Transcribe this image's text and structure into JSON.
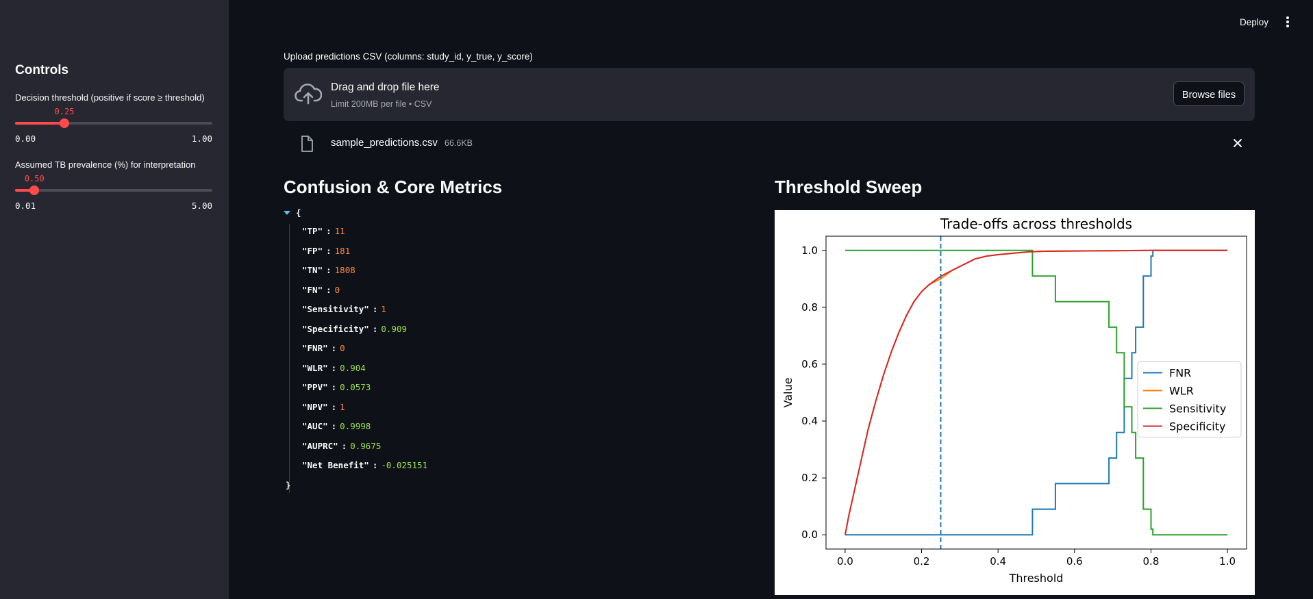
{
  "header": {
    "deploy_label": "Deploy",
    "menu_icon": "vertical-ellipsis-icon"
  },
  "sidebar": {
    "title": "Controls",
    "threshold_slider": {
      "label": "Decision threshold (positive if score ≥ threshold)",
      "value": "0.25",
      "value_num": 0.25,
      "min": "0.00",
      "max": "1.00",
      "min_num": 0.0,
      "max_num": 1.0
    },
    "prevalence_slider": {
      "label": "Assumed TB prevalence (%) for interpretation",
      "value": "0.50",
      "value_num": 0.5,
      "min": "0.01",
      "max": "5.00",
      "min_num": 0.01,
      "max_num": 5.0
    }
  },
  "uploader": {
    "label": "Upload predictions CSV (columns: study_id, y_true, y_score)",
    "drop_text": "Drag and drop file here",
    "limit_text": "Limit 200MB per file • CSV",
    "browse_label": "Browse files",
    "file_name": "sample_predictions.csv",
    "file_size": "66.6KB"
  },
  "metrics": {
    "heading": "Confusion & Core Metrics",
    "open_brace": "{",
    "close_brace": "}",
    "entries": [
      {
        "key": "\"TP\"",
        "value": "11",
        "color": "#ff8c42"
      },
      {
        "key": "\"FP\"",
        "value": "181",
        "color": "#ff8c42"
      },
      {
        "key": "\"TN\"",
        "value": "1808",
        "color": "#ff8c42"
      },
      {
        "key": "\"FN\"",
        "value": "0",
        "color": "#ff8c42"
      },
      {
        "key": "\"Sensitivity\"",
        "value": "1",
        "color": "#ff8c42"
      },
      {
        "key": "\"Specificity\"",
        "value": "0.909",
        "color": "#9ee24f"
      },
      {
        "key": "\"FNR\"",
        "value": "0",
        "color": "#ff8c42"
      },
      {
        "key": "\"WLR\"",
        "value": "0.904",
        "color": "#9ee24f"
      },
      {
        "key": "\"PPV\"",
        "value": "0.0573",
        "color": "#9ee24f"
      },
      {
        "key": "\"NPV\"",
        "value": "1",
        "color": "#ff8c42"
      },
      {
        "key": "\"AUC\"",
        "value": "0.9998",
        "color": "#9ee24f"
      },
      {
        "key": "\"AUPRC\"",
        "value": "0.9675",
        "color": "#9ee24f"
      },
      {
        "key": "\"Net Benefit\"",
        "value": "-0.025151",
        "color": "#9ee24f"
      }
    ]
  },
  "sweep": {
    "heading": "Threshold Sweep"
  },
  "chart_data": {
    "type": "line",
    "title": "Trade-offs across thresholds",
    "xlabel": "Threshold",
    "ylabel": "Value",
    "xlim": [
      -0.05,
      1.05
    ],
    "ylim": [
      -0.05,
      1.05
    ],
    "xticks": [
      "0.0",
      "0.2",
      "0.4",
      "0.6",
      "0.8",
      "1.0"
    ],
    "yticks": [
      "0.0",
      "0.2",
      "0.4",
      "0.6",
      "0.8",
      "1.0"
    ],
    "legend_position": "center-right",
    "vline": {
      "x": 0.25,
      "style": "dashed",
      "color": "#1f77b4"
    },
    "series": [
      {
        "name": "FNR",
        "color": "#1f77b4",
        "x": [
          0.0,
          0.49,
          0.49,
          0.55,
          0.55,
          0.69,
          0.69,
          0.71,
          0.71,
          0.73,
          0.73,
          0.75,
          0.75,
          0.76,
          0.76,
          0.78,
          0.78,
          0.8,
          0.8,
          0.805,
          0.805,
          1.0
        ],
        "y": [
          0.0,
          0.0,
          0.09,
          0.09,
          0.18,
          0.18,
          0.27,
          0.27,
          0.36,
          0.36,
          0.55,
          0.55,
          0.64,
          0.64,
          0.73,
          0.73,
          0.91,
          0.91,
          0.98,
          0.98,
          1.0,
          1.0
        ]
      },
      {
        "name": "WLR",
        "color": "#ff7f0e",
        "x": [
          0.0,
          0.01,
          0.02,
          0.04,
          0.06,
          0.08,
          0.1,
          0.12,
          0.14,
          0.16,
          0.18,
          0.2,
          0.22,
          0.25,
          0.28,
          0.31,
          0.34,
          0.37,
          0.4,
          0.44,
          0.48,
          0.52,
          0.6,
          0.7,
          0.8,
          1.0
        ],
        "y": [
          0.0,
          0.07,
          0.13,
          0.25,
          0.37,
          0.47,
          0.56,
          0.64,
          0.71,
          0.77,
          0.82,
          0.855,
          0.88,
          0.9,
          0.93,
          0.95,
          0.97,
          0.98,
          0.985,
          0.99,
          0.995,
          0.997,
          0.998,
          0.999,
          1.0,
          1.0
        ]
      },
      {
        "name": "Sensitivity",
        "color": "#2ca02c",
        "x": [
          0.0,
          0.49,
          0.49,
          0.55,
          0.55,
          0.69,
          0.69,
          0.71,
          0.71,
          0.73,
          0.73,
          0.75,
          0.75,
          0.76,
          0.76,
          0.78,
          0.78,
          0.8,
          0.8,
          0.805,
          0.805,
          1.0
        ],
        "y": [
          1.0,
          1.0,
          0.91,
          0.91,
          0.82,
          0.82,
          0.73,
          0.73,
          0.64,
          0.64,
          0.45,
          0.45,
          0.36,
          0.36,
          0.27,
          0.27,
          0.09,
          0.09,
          0.02,
          0.02,
          0.0,
          0.0
        ]
      },
      {
        "name": "Specificity",
        "color": "#d62728",
        "x": [
          0.0,
          0.01,
          0.02,
          0.04,
          0.06,
          0.08,
          0.1,
          0.12,
          0.14,
          0.16,
          0.18,
          0.2,
          0.22,
          0.25,
          0.28,
          0.31,
          0.34,
          0.37,
          0.4,
          0.44,
          0.48,
          0.52,
          0.6,
          0.7,
          0.8,
          1.0
        ],
        "y": [
          0.0,
          0.07,
          0.13,
          0.25,
          0.37,
          0.47,
          0.56,
          0.64,
          0.71,
          0.77,
          0.82,
          0.855,
          0.88,
          0.909,
          0.93,
          0.95,
          0.97,
          0.98,
          0.985,
          0.99,
          0.995,
          0.997,
          0.998,
          0.999,
          1.0,
          1.0
        ]
      }
    ]
  }
}
